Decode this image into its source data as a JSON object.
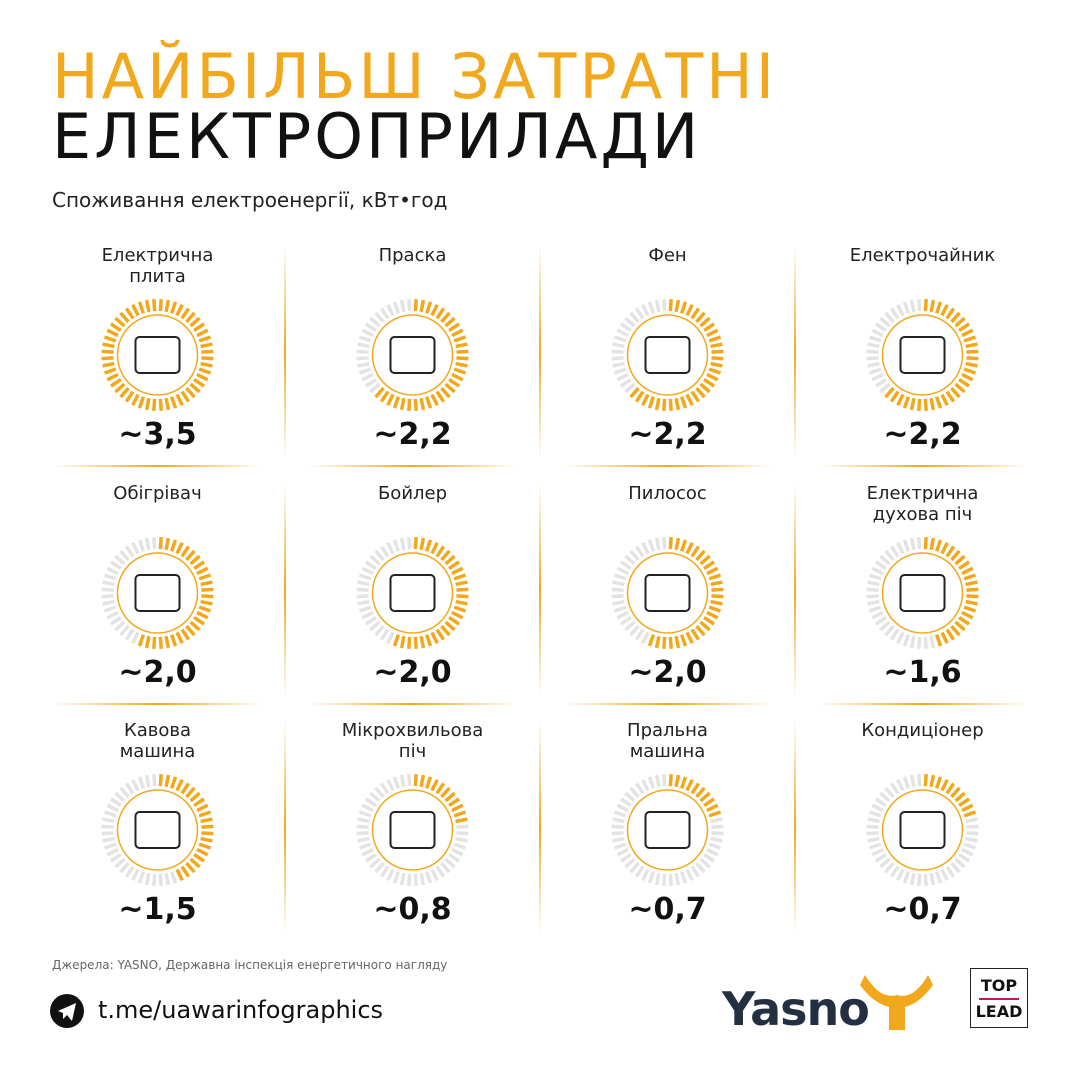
{
  "chart_data": {
    "type": "gauge",
    "title": "НАЙБІЛЬШ ЗАТРАТНІ",
    "title_line2": "ЕЛЕКТРОПРИЛАДИ",
    "subtitle": "Споживання електроенергії, кВт•год",
    "categories": [
      "Електрична\nплита",
      "Праска",
      "Фен",
      "Електрочайник",
      "Обігрівач",
      "Бойлер",
      "Пилосос",
      "Електрична\nдухова піч",
      "Кавова\nмашина",
      "Мікрохвильова\nпіч",
      "Пральна\nмашина",
      "Кондиціонер"
    ],
    "values": [
      3.5,
      2.2,
      2.2,
      2.2,
      2.0,
      2.0,
      2.0,
      1.6,
      1.5,
      0.8,
      0.7,
      0.7
    ],
    "value_labels": [
      "~3,5",
      "~2,2",
      "~2,2",
      "~2,2",
      "~2,0",
      "~2,0",
      "~2,0",
      "~1,6",
      "~1,5",
      "~0,8",
      "~0,7",
      "~0,7"
    ],
    "ylim": [
      0,
      3.5
    ],
    "color": "#f2a81d",
    "track_color": "#e3e3e3",
    "source": "Джерела: YASNO, Державна інспекція енергетичного нагляду"
  },
  "footer": {
    "link": "t.me/uawarinfographics",
    "brand": "Yasno",
    "badge_top": "TOP",
    "badge_bottom": "LEAD"
  }
}
